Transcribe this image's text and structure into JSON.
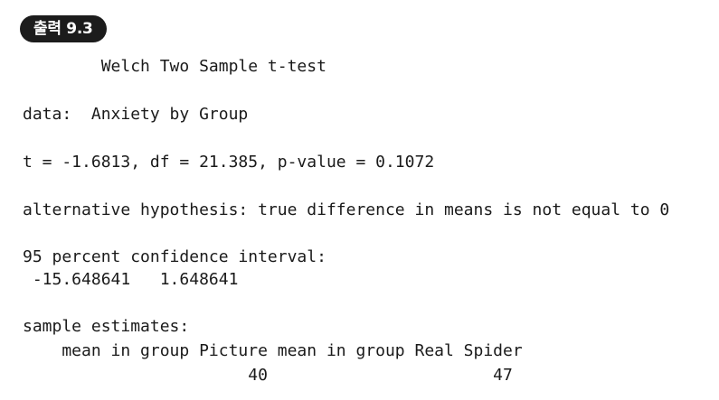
{
  "badge": {
    "label": "출력 9.3"
  },
  "output": {
    "title": "        Welch Two Sample t-test",
    "data_line": "data:  Anxiety by Group",
    "stats_line": "t = -1.6813, df = 21.385, p-value = 0.1072",
    "alternative_line": "alternative hypothesis: true difference in means is not equal to 0",
    "ci_header": "95 percent confidence interval:",
    "ci_values": " -15.648641   1.648641",
    "estimates_header": "sample estimates:",
    "estimates_names": "    mean in group Picture mean in group Real Spider",
    "estimates_values": "                       40                       47"
  }
}
